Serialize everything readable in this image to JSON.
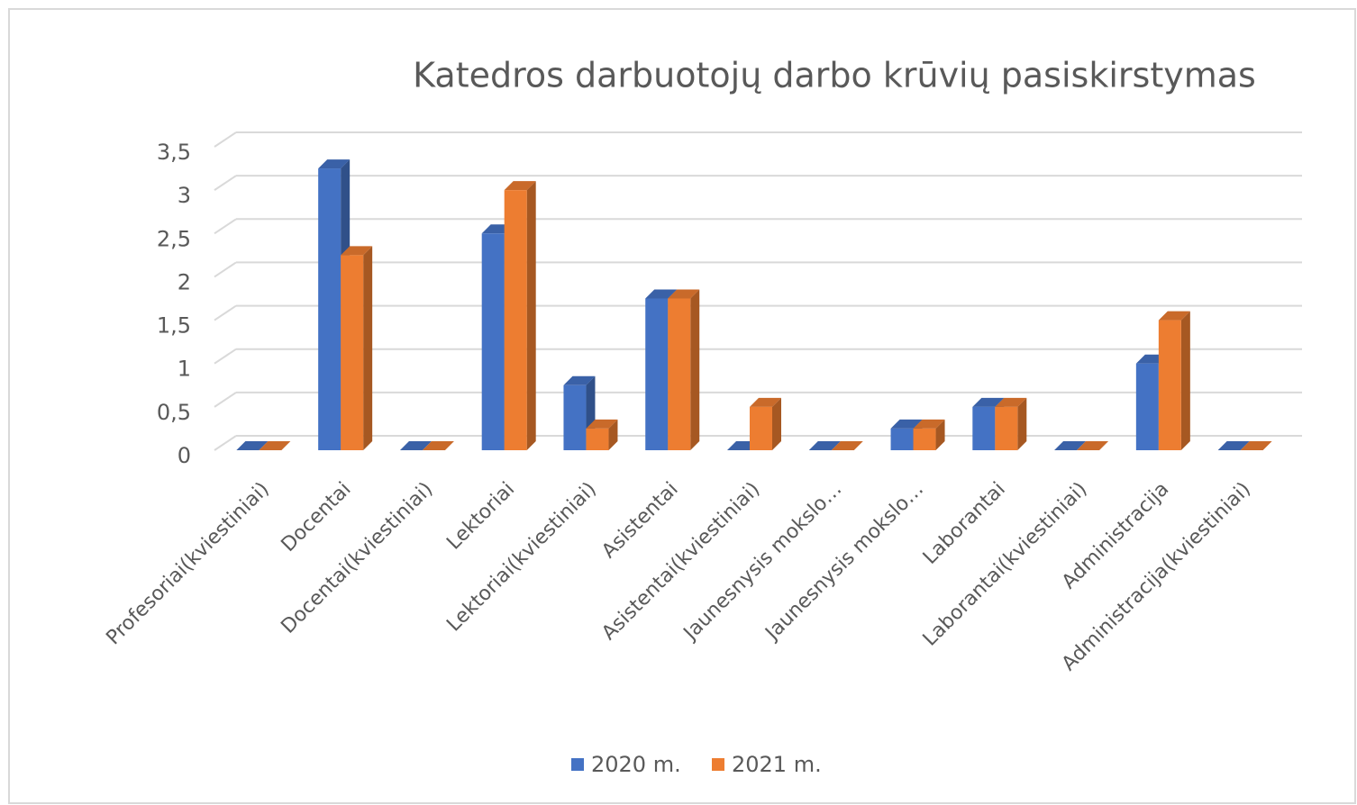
{
  "chart_data": {
    "type": "bar3d",
    "title": "Katedros darbuotojų darbo krūvių pasiskirstymas",
    "categories": [
      "Profesoriai(kviestiniai)",
      "Docentai",
      "Docentai(kviestiniai)",
      "Lektoriai",
      "Lektoriai(kviestiniai)",
      "Asistentai",
      "Asistentai(kviestiniai)",
      "Jaunesnysis mokslo…",
      "Jaunesnysis mokslo…",
      "Laborantai",
      "Laborantai(kviestiniai)",
      "Administracija",
      "Administracija(kviestiniai)"
    ],
    "series": [
      {
        "name": "2020 m.",
        "color": "#4472c4",
        "values": [
          0,
          3.25,
          0,
          2.5,
          0.75,
          1.75,
          0,
          0,
          0.25,
          0.5,
          0,
          1,
          0
        ]
      },
      {
        "name": "2021 m.",
        "color": "#ed7d31",
        "values": [
          0,
          2.25,
          0,
          3,
          0.25,
          1.75,
          0.5,
          0,
          0.25,
          0.5,
          0,
          1.5,
          0
        ]
      }
    ],
    "ylim": [
      0,
      3.5
    ],
    "yticks": [
      0,
      {
        "value": 0.5,
        "label": "0,5"
      },
      1,
      {
        "value": 1.5,
        "label": "1,5"
      },
      2,
      {
        "value": 2.5,
        "label": "2,5"
      },
      3,
      {
        "value": 3.5,
        "label": "3,5"
      }
    ],
    "grid": true,
    "legend": "bottom"
  }
}
